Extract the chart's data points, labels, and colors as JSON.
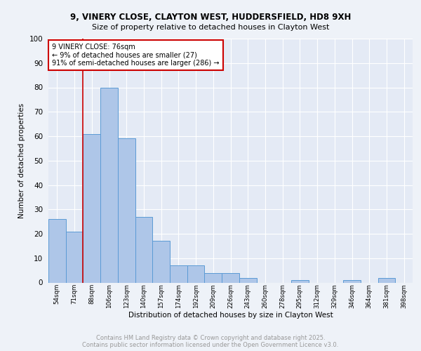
{
  "title1": "9, VINERY CLOSE, CLAYTON WEST, HUDDERSFIELD, HD8 9XH",
  "title2": "Size of property relative to detached houses in Clayton West",
  "xlabel": "Distribution of detached houses by size in Clayton West",
  "ylabel": "Number of detached properties",
  "bin_labels": [
    "54sqm",
    "71sqm",
    "88sqm",
    "106sqm",
    "123sqm",
    "140sqm",
    "157sqm",
    "174sqm",
    "192sqm",
    "209sqm",
    "226sqm",
    "243sqm",
    "260sqm",
    "278sqm",
    "295sqm",
    "312sqm",
    "329sqm",
    "346sqm",
    "364sqm",
    "381sqm",
    "398sqm"
  ],
  "bar_values": [
    26,
    21,
    61,
    80,
    59,
    27,
    17,
    7,
    7,
    4,
    4,
    2,
    0,
    0,
    1,
    0,
    0,
    1,
    0,
    2,
    0
  ],
  "bar_color": "#aec6e8",
  "bar_edge_color": "#5b9bd5",
  "vline_color": "#cc0000",
  "annotation_text": "9 VINERY CLOSE: 76sqm\n← 9% of detached houses are smaller (27)\n91% of semi-detached houses are larger (286) →",
  "box_edge_color": "#cc0000",
  "footer_text": "Contains HM Land Registry data © Crown copyright and database right 2025.\nContains public sector information licensed under the Open Government Licence v3.0.",
  "ylim": [
    0,
    100
  ],
  "yticks": [
    0,
    10,
    20,
    30,
    40,
    50,
    60,
    70,
    80,
    90,
    100
  ],
  "bg_color": "#eef2f8",
  "plot_bg_color": "#e4eaf5"
}
